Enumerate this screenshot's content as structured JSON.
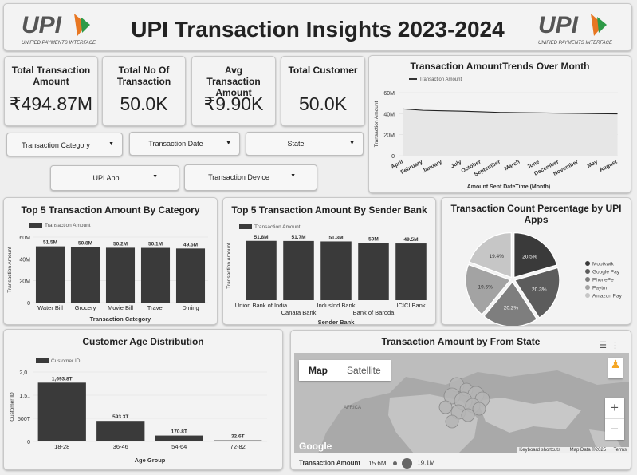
{
  "header": {
    "title": "UPI Transaction Insights 2023-2024",
    "logo_text": "UPI",
    "logo_subtitle": "UNIFIED PAYMENTS INTERFACE"
  },
  "kpis": [
    {
      "label": "Total Transaction Amount",
      "value": "₹494.87M"
    },
    {
      "label": "Total No Of Transaction",
      "value": "50.0K"
    },
    {
      "label": "Avg Transaction Amount",
      "value": "₹9.90K"
    },
    {
      "label": "Total Customer",
      "value": "50.0K"
    }
  ],
  "filters": [
    {
      "label": "Transaction Category"
    },
    {
      "label": "Transaction Date"
    },
    {
      "label": "State"
    },
    {
      "label": "UPI App"
    },
    {
      "label": "Transaction Device"
    }
  ],
  "colors": {
    "bar": "#3a3a3a",
    "pie": [
      "#3a3a3a",
      "#5c5c5c",
      "#7e7e7e",
      "#a3a3a3",
      "#c6c6c6"
    ]
  },
  "chart_data": [
    {
      "id": "trend",
      "type": "line",
      "title": "Transaction AmountTrends Over Month",
      "xlabel": "Amount Sent DateTime (Month)",
      "ylabel": "Transaction Amount",
      "legend": "Transaction Amount",
      "categories": [
        "April",
        "February",
        "January",
        "July",
        "October",
        "September",
        "March",
        "June",
        "December",
        "November",
        "May",
        "August"
      ],
      "values": [
        44.5,
        43.2,
        42.8,
        42.4,
        41.8,
        41.2,
        41.0,
        40.8,
        40.5,
        40.3,
        40.0,
        39.8
      ],
      "ylim": [
        0,
        60
      ],
      "yticks": [
        "0",
        "20M",
        "40M",
        "60M"
      ]
    },
    {
      "id": "category",
      "type": "bar",
      "title": "Top 5 Transaction Amount By Category",
      "xlabel": "Transaction Category",
      "ylabel": "Transaction Amount",
      "legend": "Transaction Amount",
      "categories": [
        "Water Bill",
        "Grocery",
        "Movie Bill",
        "Travel",
        "Dining"
      ],
      "values": [
        51.5,
        50.8,
        50.2,
        50.1,
        49.5
      ],
      "data_labels": [
        "51.5M",
        "50.8M",
        "50.2M",
        "50.1M",
        "49.5M"
      ],
      "ylim": [
        0,
        60
      ],
      "yticks": [
        "0",
        "20M",
        "40M",
        "60M"
      ]
    },
    {
      "id": "bank",
      "type": "bar",
      "title": "Top 5 Transaction Amount By Sender Bank",
      "xlabel": "Sender Bank",
      "ylabel": "Transaction Amount",
      "legend": "Transaction Amount",
      "categories": [
        "Union Bank of India",
        "Canara Bank",
        "IndusInd Bank",
        "Bank of Baroda",
        "ICICI Bank"
      ],
      "values": [
        51.8,
        51.7,
        51.3,
        50.0,
        49.5
      ],
      "data_labels": [
        "51.8M",
        "51.7M",
        "51.3M",
        "50M",
        "49.5M"
      ]
    },
    {
      "id": "apps",
      "type": "pie",
      "title": "Transaction Count Percentage by UPI Apps",
      "labels": [
        "Mobikwik",
        "Google Pay",
        "PhonePe",
        "Paytm",
        "Amazon Pay"
      ],
      "values": [
        20.5,
        20.3,
        20.2,
        19.6,
        19.4
      ],
      "data_labels": [
        "20.5%",
        "20.3%",
        "20.2%",
        "19.6%",
        "19.4%"
      ],
      "legend_position": "right"
    },
    {
      "id": "age",
      "type": "bar",
      "title": "Customer Age Distribution",
      "xlabel": "Age Group",
      "ylabel": "Customer ID",
      "legend": "Customer ID",
      "categories": [
        "18-28",
        "36-46",
        "54-64",
        "72-82"
      ],
      "values": [
        1693.8,
        593.3,
        170.8,
        32.6
      ],
      "data_labels": [
        "1,693.8T",
        "593.3T",
        "170.8T",
        "32.6T"
      ],
      "ylim": [
        0,
        2000
      ],
      "yticks": [
        "0",
        "500T",
        "1,5..",
        "2,0.."
      ]
    }
  ],
  "map": {
    "title": "Transaction Amount by From State",
    "tab_map": "Map",
    "tab_satellite": "Satellite",
    "region_label": "AFRICA",
    "google_label": "Google",
    "footer": [
      "Keyboard shortcuts",
      "Map Data ©2025",
      "Terms"
    ],
    "zoom_in": "+",
    "zoom_out": "−",
    "legend_label": "Transaction Amount",
    "legend_min": "15.6M",
    "legend_max": "19.1M",
    "bubble_count_note": ""
  }
}
